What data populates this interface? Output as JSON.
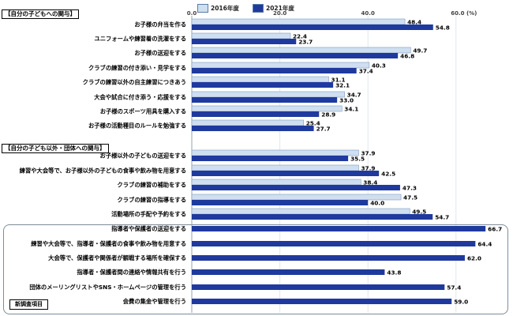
{
  "sections": {
    "self": "【自分の子どもへの関与】",
    "others": "【自分の子ども以外・団体への関与】",
    "new_items": "新調査項目"
  },
  "colors": {
    "y2016": "#cfdff0",
    "y2021": "#1f3a9e"
  },
  "chart_data": {
    "type": "bar",
    "orientation": "horizontal",
    "x_ticks": [
      "0.0",
      "20.0",
      "40.0",
      "60.0 (%)"
    ],
    "xlim": [
      0,
      70
    ],
    "series": [
      {
        "name": "2016年度",
        "values": [
          48.4,
          22.4,
          49.7,
          40.3,
          31.1,
          34.7,
          34.1,
          25.4,
          37.9,
          37.9,
          38.4,
          47.5,
          49.5,
          null,
          null,
          null,
          null,
          null,
          null
        ]
      },
      {
        "name": "2021年度",
        "values": [
          54.8,
          23.7,
          46.8,
          37.4,
          32.1,
          33.0,
          28.9,
          27.7,
          35.5,
          42.5,
          47.3,
          40.0,
          54.7,
          66.7,
          64.4,
          62.0,
          43.8,
          57.4,
          59.0
        ]
      }
    ],
    "categories": [
      "お子様の弁当を作る",
      "ユニフォームや練習着の洗濯をする",
      "お子様の送迎をする",
      "クラブの練習の付き添い・見学をする",
      "クラブの練習以外の自主練習につきあう",
      "大会や試合に付き添う・応援をする",
      "お子様のスポーツ用具を購入する",
      "お子様の活動種目のルールを勉強する",
      "お子様以外の子どもの送迎をする",
      "練習や大会等で、お子様以外の子どもの食事や飲み物を用意する",
      "クラブの練習の補助をする",
      "クラブの練習の指導をする",
      "活動場所の手配や予約をする",
      "指導者や保護者の送迎をする",
      "練習や大会等で、指導者・保護者の食事や飲み物を用意する",
      "大会等で、保護者や関係者が観戦する場所を確保する",
      "指導者・保護者間の連絡や情報共有を行う",
      "団体のメーリングリストやSNS・ホームページの管理を行う",
      "会費の集金や管理を行う"
    ]
  }
}
